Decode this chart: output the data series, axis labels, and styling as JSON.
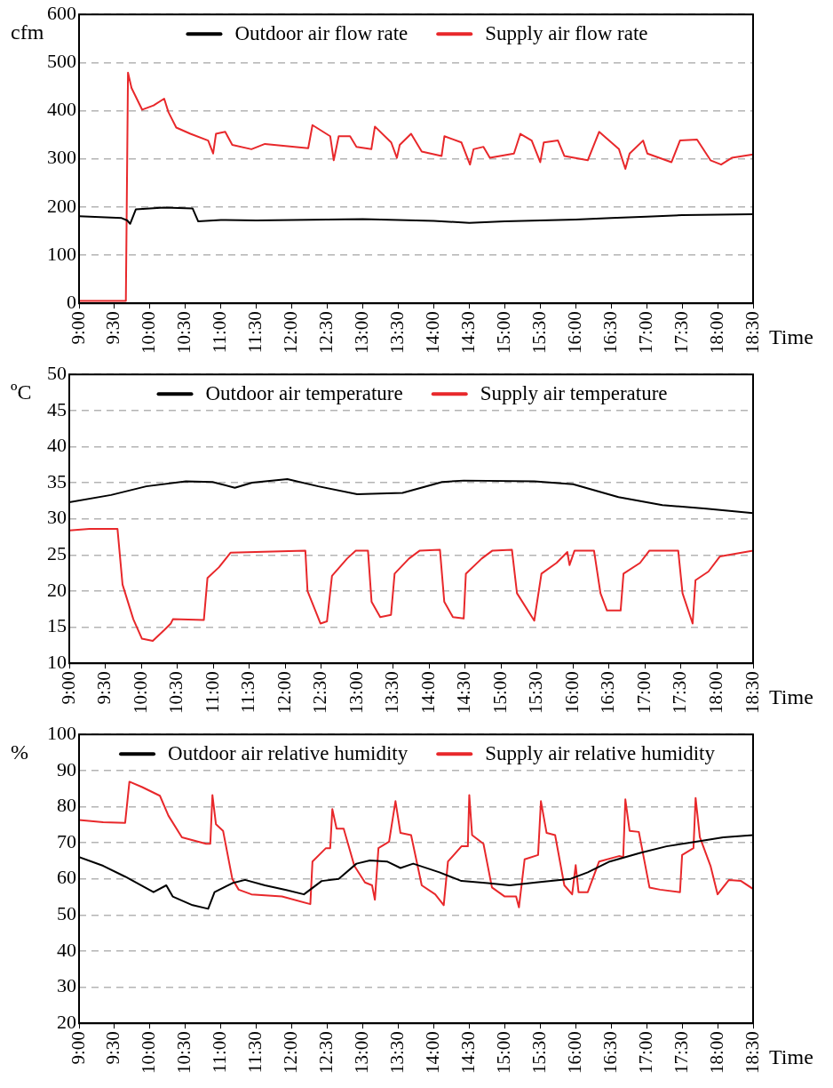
{
  "chart_data": [
    {
      "type": "line",
      "ylabel": "cfm",
      "xlabel": "Time",
      "xlim": [
        9,
        18.5
      ],
      "xticks": [
        {
          "value": 9,
          "label": "9:00"
        },
        {
          "value": 9.5,
          "label": "9:30"
        },
        {
          "value": 10,
          "label": "10:00"
        },
        {
          "value": 10.5,
          "label": "10:30"
        },
        {
          "value": 11,
          "label": "11:00"
        },
        {
          "value": 11.5,
          "label": "11:30"
        },
        {
          "value": 12,
          "label": "12:00"
        },
        {
          "value": 12.5,
          "label": "12:30"
        },
        {
          "value": 13,
          "label": "13:00"
        },
        {
          "value": 13.5,
          "label": "13:30"
        },
        {
          "value": 14,
          "label": "14:00"
        },
        {
          "value": 14.5,
          "label": "14:30"
        },
        {
          "value": 15,
          "label": "15:00"
        },
        {
          "value": 15.5,
          "label": "15:30"
        },
        {
          "value": 16,
          "label": "16:00"
        },
        {
          "value": 16.5,
          "label": "16:30"
        },
        {
          "value": 17,
          "label": "17:00"
        },
        {
          "value": 17.5,
          "label": "17:30"
        },
        {
          "value": 18,
          "label": "18:00"
        },
        {
          "value": 18.5,
          "label": "18:30"
        }
      ],
      "ylim": [
        0,
        600
      ],
      "yticks": [
        0,
        100,
        200,
        300,
        400,
        500,
        600
      ],
      "grid": "y",
      "legend": "top",
      "series": [
        {
          "name": "Outdoor air flow rate",
          "color": "#000000",
          "x": [
            9,
            9.6,
            9.68,
            9.72,
            9.8,
            10.2,
            10.6,
            10.68,
            11,
            11.5,
            12,
            12.5,
            13,
            13.5,
            14,
            14.5,
            15,
            15.5,
            16,
            16.5,
            17,
            17.5,
            18,
            18.5
          ],
          "values": [
            181,
            177,
            172,
            165,
            195,
            199,
            197,
            170,
            173,
            172,
            173,
            174,
            175,
            173,
            171,
            167,
            170,
            172,
            174,
            177,
            180,
            183,
            184,
            185
          ]
        },
        {
          "name": "Supply air flow rate",
          "color": "#e8282b",
          "x": [
            9,
            9.66,
            9.69,
            9.74,
            9.89,
            10.05,
            10.2,
            10.26,
            10.37,
            10.57,
            10.82,
            10.89,
            10.93,
            11.06,
            11.16,
            11.43,
            11.62,
            12.23,
            12.29,
            12.54,
            12.59,
            12.66,
            12.82,
            12.91,
            13.12,
            13.17,
            13.4,
            13.48,
            13.52,
            13.68,
            13.83,
            14.11,
            14.15,
            14.39,
            14.51,
            14.56,
            14.7,
            14.79,
            15.13,
            15.22,
            15.38,
            15.5,
            15.55,
            15.75,
            15.84,
            16.17,
            16.33,
            16.61,
            16.7,
            16.76,
            16.95,
            17.01,
            17.35,
            17.47,
            17.71,
            17.9,
            18.05,
            18.2,
            18.5
          ],
          "values": [
            5,
            5,
            479,
            447,
            402,
            411,
            425,
            397,
            365,
            352,
            338,
            311,
            352,
            356,
            329,
            320,
            331,
            322,
            370,
            347,
            297,
            347,
            347,
            325,
            320,
            367,
            334,
            302,
            329,
            352,
            315,
            306,
            347,
            334,
            288,
            320,
            325,
            302,
            311,
            352,
            338,
            293,
            334,
            338,
            306,
            297,
            356,
            320,
            279,
            311,
            338,
            311,
            293,
            338,
            340,
            297,
            288,
            302,
            309
          ]
        }
      ]
    },
    {
      "type": "line",
      "ylabel": "ºC",
      "xlabel": "Time",
      "xlim": [
        9,
        18.5
      ],
      "xticks": [
        {
          "value": 9,
          "label": "9:00"
        },
        {
          "value": 9.5,
          "label": "9:30"
        },
        {
          "value": 10,
          "label": "10:00"
        },
        {
          "value": 10.5,
          "label": "10:30"
        },
        {
          "value": 11,
          "label": "11:00"
        },
        {
          "value": 11.5,
          "label": "11:30"
        },
        {
          "value": 12,
          "label": "12:00"
        },
        {
          "value": 12.5,
          "label": "12:30"
        },
        {
          "value": 13,
          "label": "13:00"
        },
        {
          "value": 13.5,
          "label": "13:30"
        },
        {
          "value": 14,
          "label": "14:00"
        },
        {
          "value": 14.5,
          "label": "14:30"
        },
        {
          "value": 15,
          "label": "15:00"
        },
        {
          "value": 15.5,
          "label": "15:30"
        },
        {
          "value": 16,
          "label": "16:00"
        },
        {
          "value": 16.5,
          "label": "16:30"
        },
        {
          "value": 17,
          "label": "17:00"
        },
        {
          "value": 17.5,
          "label": "17:30"
        },
        {
          "value": 18,
          "label": "18:00"
        },
        {
          "value": 18.5,
          "label": "18:30"
        }
      ],
      "ylim": [
        10,
        50
      ],
      "yticks": [
        10,
        15,
        20,
        25,
        30,
        35,
        40,
        45,
        50
      ],
      "grid": "y",
      "legend": "top",
      "series": [
        {
          "name": "Outdoor air temperature",
          "color": "#000000",
          "x": [
            9,
            9.58,
            10.07,
            10.62,
            10.99,
            11.3,
            11.54,
            12.03,
            12.46,
            13,
            13.63,
            14.18,
            14.48,
            15.46,
            16,
            16.63,
            17.24,
            17.85,
            18.5
          ],
          "values": [
            32.3,
            33.3,
            34.5,
            35.2,
            35.1,
            34.3,
            35,
            35.5,
            34.5,
            33.4,
            33.6,
            35.1,
            35.3,
            35.2,
            34.8,
            33,
            31.9,
            31.4,
            30.8
          ]
        },
        {
          "name": "Supply air temperature",
          "color": "#e8282b",
          "x": [
            9,
            9.28,
            9.67,
            9.74,
            9.89,
            10.01,
            10.16,
            10.32,
            10.41,
            10.44,
            10.87,
            10.92,
            11.08,
            11.24,
            12.28,
            12.31,
            12.49,
            12.58,
            12.65,
            12.86,
            12.98,
            13.15,
            13.2,
            13.32,
            13.47,
            13.52,
            13.72,
            13.87,
            14.15,
            14.21,
            14.33,
            14.48,
            14.51,
            14.73,
            14.88,
            15.15,
            15.22,
            15.46,
            15.56,
            15.77,
            15.92,
            15.95,
            16.02,
            16.29,
            16.38,
            16.47,
            16.66,
            16.7,
            16.93,
            17.06,
            17.46,
            17.52,
            17.66,
            17.7,
            17.88,
            18.04,
            18.5
          ],
          "values": [
            28.4,
            28.6,
            28.6,
            20.9,
            16.1,
            13.4,
            13.1,
            14.6,
            15.5,
            16.1,
            16,
            21.8,
            23.3,
            25.3,
            25.6,
            20,
            15.5,
            15.8,
            22.1,
            24.5,
            25.6,
            25.6,
            18.5,
            16.4,
            16.7,
            22.4,
            24.5,
            25.6,
            25.7,
            18.5,
            16.4,
            16.2,
            22.4,
            24.5,
            25.6,
            25.7,
            19.7,
            15.9,
            22.4,
            23.9,
            25.4,
            23.6,
            25.6,
            25.6,
            19.7,
            17.3,
            17.3,
            22.4,
            23.9,
            25.6,
            25.6,
            19.7,
            15.5,
            21.5,
            22.7,
            24.8,
            25.6
          ]
        }
      ]
    },
    {
      "type": "line",
      "ylabel": "%",
      "xlabel": "Time",
      "xlim": [
        9,
        18.5
      ],
      "xticks": [
        {
          "value": 9,
          "label": "9:00"
        },
        {
          "value": 9.5,
          "label": "9:30"
        },
        {
          "value": 10,
          "label": "10:00"
        },
        {
          "value": 10.5,
          "label": "10:30"
        },
        {
          "value": 11,
          "label": "11:00"
        },
        {
          "value": 11.5,
          "label": "11:30"
        },
        {
          "value": 12,
          "label": "12:00"
        },
        {
          "value": 12.5,
          "label": "12:30"
        },
        {
          "value": 13,
          "label": "13:00"
        },
        {
          "value": 13.5,
          "label": "13:30"
        },
        {
          "value": 14,
          "label": "14:00"
        },
        {
          "value": 14.5,
          "label": "14:30"
        },
        {
          "value": 15,
          "label": "15:00"
        },
        {
          "value": 15.5,
          "label": "15:30"
        },
        {
          "value": 16,
          "label": "16:00"
        },
        {
          "value": 16.5,
          "label": "16:30"
        },
        {
          "value": 17,
          "label": "17:00"
        },
        {
          "value": 17.5,
          "label": "17:30"
        },
        {
          "value": 18,
          "label": "18:00"
        },
        {
          "value": 18.5,
          "label": "18:30"
        }
      ],
      "ylim": [
        20,
        100
      ],
      "yticks": [
        20,
        30,
        40,
        50,
        60,
        70,
        80,
        90,
        100
      ],
      "grid": "y",
      "legend": "top",
      "series": [
        {
          "name": "Outdoor air relative humidity",
          "color": "#000000",
          "x": [
            9,
            9.34,
            9.65,
            10.05,
            10.23,
            10.32,
            10.6,
            10.82,
            10.91,
            11.16,
            11.34,
            11.62,
            11.92,
            12.17,
            12.42,
            12.66,
            12.91,
            13.1,
            13.34,
            13.53,
            13.71,
            14.08,
            14.39,
            14.76,
            15.07,
            15.44,
            15.93,
            16.17,
            16.48,
            16.91,
            17.28,
            17.71,
            18.08,
            18.5
          ],
          "values": [
            66,
            63.6,
            60.6,
            56.3,
            58.2,
            55.1,
            52.7,
            51.7,
            56.3,
            58.8,
            59.7,
            58.2,
            56.9,
            55.7,
            59.4,
            60,
            64.2,
            65.1,
            64.8,
            63,
            64.2,
            61.8,
            59.4,
            58.8,
            58.2,
            59,
            60,
            61.8,
            64.8,
            67.2,
            69,
            70.3,
            71.5,
            72.1
          ]
        },
        {
          "name": "Supply air relative humidity",
          "color": "#e8282b",
          "x": [
            9,
            9.34,
            9.65,
            9.71,
            9.89,
            10.14,
            10.26,
            10.45,
            10.79,
            10.85,
            10.88,
            10.93,
            11.03,
            11.16,
            11.25,
            11.43,
            11.86,
            12.26,
            12.29,
            12.48,
            12.54,
            12.57,
            12.63,
            12.73,
            12.88,
            13.03,
            13.13,
            13.17,
            13.22,
            13.37,
            13.46,
            13.53,
            13.68,
            13.83,
            14.02,
            14.14,
            14.2,
            14.39,
            14.48,
            14.5,
            14.54,
            14.7,
            14.82,
            15,
            15.16,
            15.2,
            15.28,
            15.47,
            15.51,
            15.59,
            15.71,
            15.84,
            15.95,
            16,
            16.04,
            16.17,
            16.33,
            16.61,
            16.67,
            16.7,
            16.76,
            16.89,
            17.04,
            17.19,
            17.47,
            17.5,
            17.66,
            17.69,
            17.75,
            17.9,
            18,
            18.16,
            18.33,
            18.5
          ],
          "values": [
            76.3,
            75.7,
            75.5,
            86.9,
            85.4,
            83,
            77.5,
            71.5,
            69.7,
            69.7,
            83.2,
            75.1,
            73.3,
            60,
            57,
            55.7,
            55.1,
            53,
            64.8,
            68.5,
            68.5,
            79.3,
            73.9,
            73.9,
            63.6,
            59,
            58.2,
            54.2,
            68.5,
            70.3,
            81.5,
            72.7,
            72.1,
            58.2,
            55.7,
            52.7,
            64.8,
            69,
            69,
            83.2,
            72.1,
            69.7,
            57.6,
            55.1,
            55.1,
            52.1,
            65.4,
            66.6,
            81.5,
            72.7,
            72.1,
            58.2,
            55.7,
            63.8,
            56.3,
            56.3,
            64.8,
            66.3,
            66,
            82,
            73.3,
            73,
            57.6,
            57,
            56.3,
            66.6,
            68.5,
            82.4,
            71.5,
            63.6,
            55.7,
            59.7,
            59.4,
            57.2
          ]
        }
      ]
    }
  ]
}
